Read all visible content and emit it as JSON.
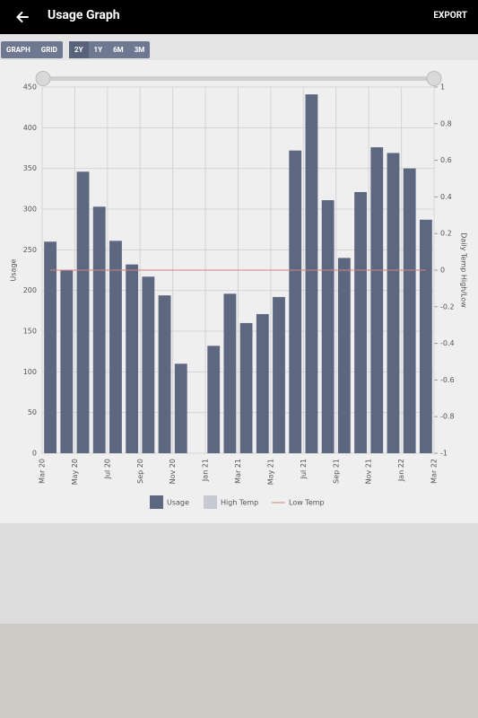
{
  "header": {
    "title": "Usage Graph",
    "action": "EXPORT"
  },
  "toolbar": {
    "views": [
      "GRAPH",
      "GRID"
    ],
    "ranges": [
      "2Y",
      "1Y",
      "6M",
      "3M"
    ]
  },
  "chart_data": {
    "type": "bar",
    "xlabel": null,
    "ylabel": "Usage",
    "y2label": "Daily Temp High/Low",
    "x": [
      0.5,
      1.5,
      2.5,
      3.5,
      4.5,
      5.5,
      6.5,
      7.5,
      8.5,
      9.5,
      10.5,
      11.5,
      12.5,
      13.5,
      14.5,
      15.5,
      16.5,
      17.5,
      18.5,
      19.5,
      20.5,
      21.5,
      22.5,
      23.5
    ],
    "xlim": [
      0,
      24
    ],
    "xticks": [
      {
        "value": 0,
        "label": "Mar 20"
      },
      {
        "value": 2,
        "label": "May 20"
      },
      {
        "value": 4,
        "label": "Jul 20"
      },
      {
        "value": 6,
        "label": "Sep 20"
      },
      {
        "value": 8,
        "label": "Nov 20"
      },
      {
        "value": 10,
        "label": "Jan 21"
      },
      {
        "value": 12,
        "label": "Mar 21"
      },
      {
        "value": 14,
        "label": "May 21"
      },
      {
        "value": 16,
        "label": "Jul 21"
      },
      {
        "value": 18,
        "label": "Sep 21"
      },
      {
        "value": 20,
        "label": "Nov 21"
      },
      {
        "value": 22,
        "label": "Jan 22"
      },
      {
        "value": 24,
        "label": "Mar 22"
      }
    ],
    "ylim": [
      0,
      450
    ],
    "yticks": [
      0,
      50,
      100,
      150,
      200,
      250,
      300,
      350,
      400,
      450
    ],
    "y2lim": [
      -1,
      1
    ],
    "y2ticks": [
      -1,
      -0.8,
      -0.6,
      -0.4,
      -0.2,
      0,
      0.2,
      0.4,
      0.6,
      0.8,
      1
    ],
    "grid": true,
    "series": [
      {
        "name": "Usage",
        "color": "#5d6880",
        "values": [
          260,
          225,
          346,
          303,
          261,
          232,
          217,
          194,
          110,
          null,
          132,
          196,
          160,
          171,
          192,
          372,
          441,
          311,
          240,
          321,
          376,
          369,
          350,
          287
        ]
      },
      {
        "name": "High Temp",
        "color": "#c8c8d2",
        "axis": "y2",
        "values": [
          null,
          null,
          null,
          null,
          null,
          null,
          null,
          null,
          null,
          null,
          null,
          null,
          null,
          null,
          null,
          null,
          null,
          null,
          null,
          null,
          null,
          null,
          null,
          null
        ]
      },
      {
        "name": "Low Temp",
        "color": "#d08080",
        "axis": "y2",
        "values": [
          0,
          0,
          0,
          0,
          0,
          0,
          0,
          0,
          0,
          0,
          0,
          0,
          0,
          0,
          0,
          0,
          0,
          0,
          0,
          0,
          0,
          0,
          0,
          0
        ]
      }
    ]
  }
}
